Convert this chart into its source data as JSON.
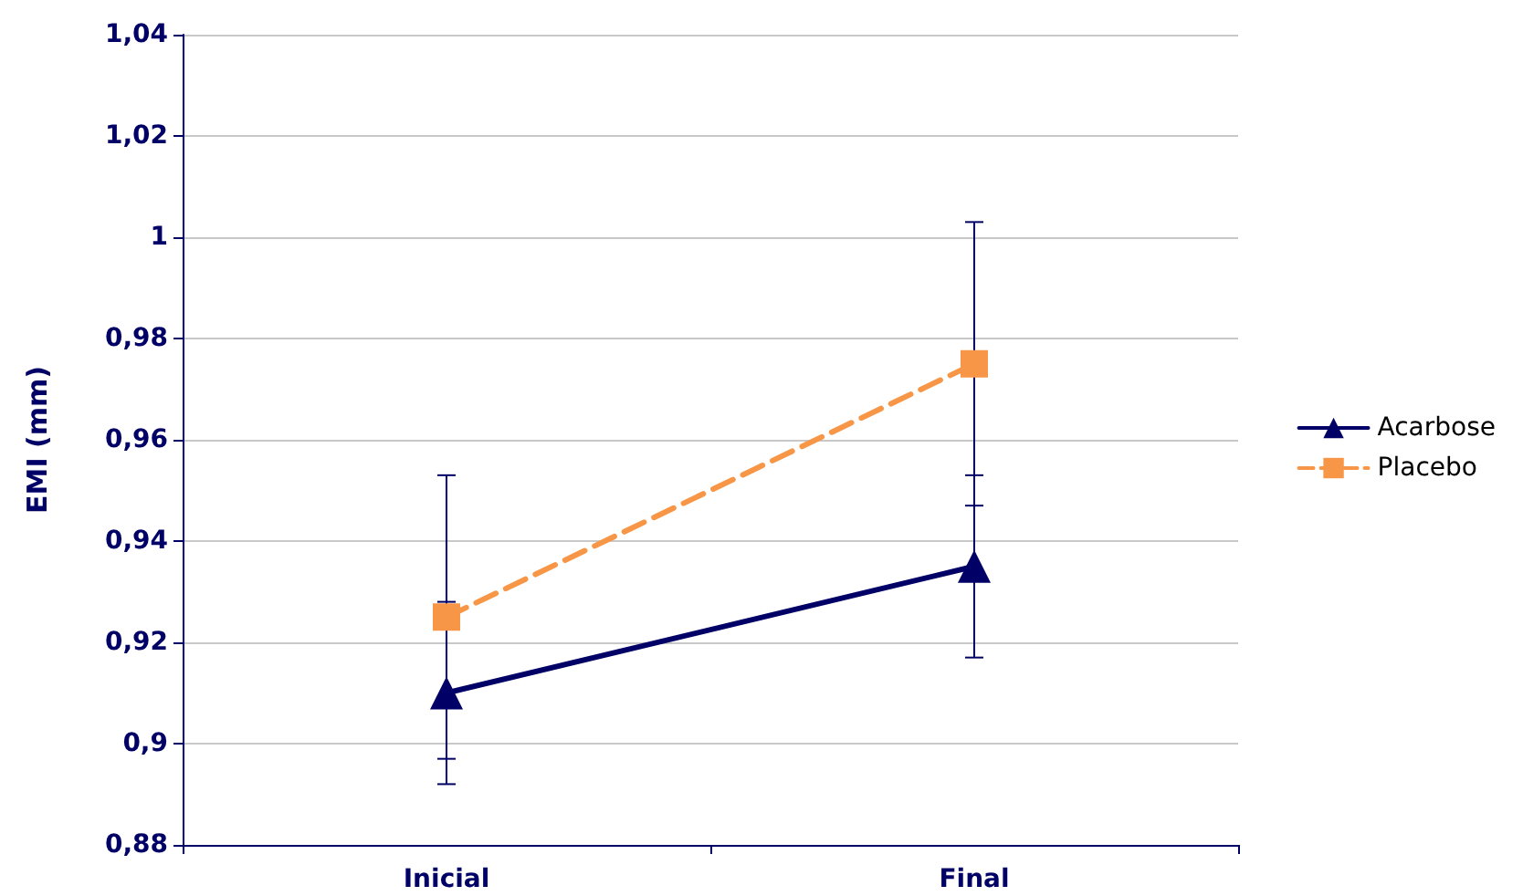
{
  "chart_data": {
    "type": "line",
    "ylabel": "EMI (mm)",
    "categories": [
      "Inicial",
      "Final"
    ],
    "series": [
      {
        "name": "Acarbose",
        "color": "#000066",
        "values": [
          0.91,
          0.935
        ],
        "errors": [
          0.018,
          0.018
        ],
        "marker": "triangle",
        "line_style": "solid"
      },
      {
        "name": "Placebo",
        "color": "#f79646",
        "values": [
          0.925,
          0.975
        ],
        "errors": [
          0.028,
          0.028
        ],
        "marker": "square",
        "line_style": "dashed"
      }
    ],
    "ylim": [
      0.88,
      1.04
    ],
    "yticks": [
      {
        "value": 0.88,
        "label": "0,88"
      },
      {
        "value": 0.9,
        "label": "0,9"
      },
      {
        "value": 0.92,
        "label": "0,92"
      },
      {
        "value": 0.94,
        "label": "0,94"
      },
      {
        "value": 0.96,
        "label": "0,96"
      },
      {
        "value": 0.98,
        "label": "0,98"
      },
      {
        "value": 1,
        "label": "1"
      },
      {
        "value": 1.02,
        "label": "1,02"
      },
      {
        "value": 1.04,
        "label": "1,04"
      }
    ],
    "grid": "y",
    "legend": "right"
  }
}
